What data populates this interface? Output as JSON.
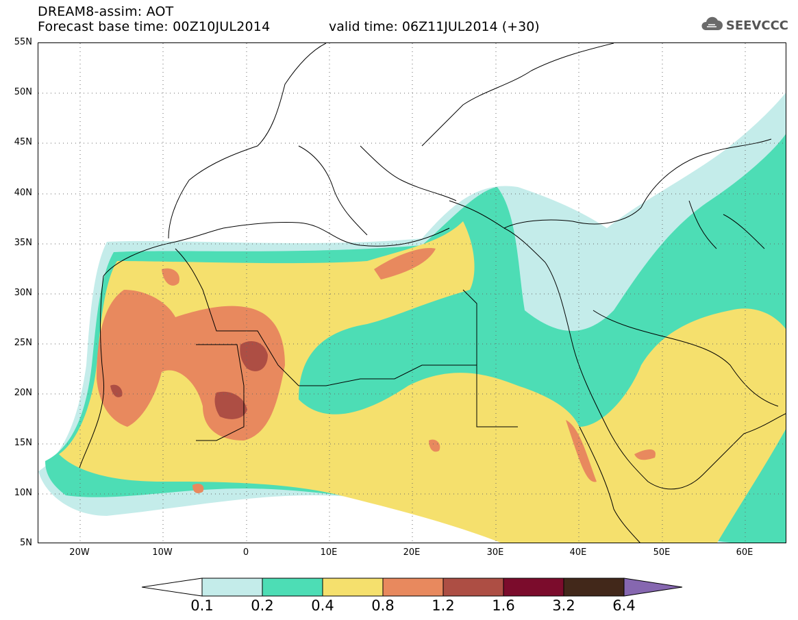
{
  "header": {
    "title": "DREAM8-assim: AOT",
    "base_time": "Forecast base time: 00Z10JUL2014",
    "valid_time": "valid time: 06Z11JUL2014 (+30)"
  },
  "logo": {
    "text": "SEEVCCC",
    "icon": "cloud-icon"
  },
  "map": {
    "lat_labels": [
      "55N",
      "50N",
      "45N",
      "40N",
      "35N",
      "30N",
      "25N",
      "20N",
      "15N",
      "10N",
      "5N"
    ],
    "lon_labels": [
      "20W",
      "10W",
      "0",
      "10E",
      "20E",
      "30E",
      "40E",
      "50E",
      "60E"
    ],
    "lat_range": [
      5,
      55
    ],
    "lon_range": [
      -25,
      65
    ],
    "gridlines": "dotted"
  },
  "legend": {
    "levels": [
      "0.1",
      "0.2",
      "0.4",
      "0.8",
      "1.2",
      "1.6",
      "3.2",
      "6.4"
    ],
    "colors": {
      "below_0.1": "#ffffff",
      "0.1-0.2": "#c4ecea",
      "0.2-0.4": "#4dddb5",
      "0.4-0.8": "#f5e06d",
      "0.8-1.2": "#e8895e",
      "1.2-1.6": "#ad4e44",
      "1.6-3.2": "#7b0c2c",
      "3.2-6.4": "#42281a",
      "above_6.4": "#8667b0"
    }
  }
}
